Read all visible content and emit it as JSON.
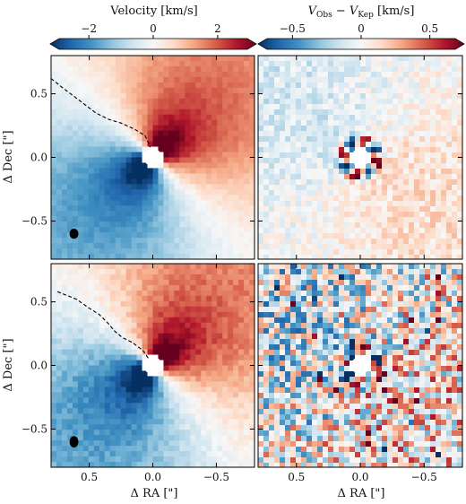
{
  "chart_data": [
    {
      "type": "heatmap",
      "panel": "top-left",
      "colorbar_label": "Velocity [km/s]",
      "colorbar_ticks": [
        -2,
        0,
        2
      ],
      "colorbar_range": [
        -3.2,
        3.2
      ],
      "colormap": "RdBu_r",
      "ylabel": "Δ Dec [\"]",
      "xlabel": "",
      "xlim": [
        0.8,
        -0.8
      ],
      "ylim": [
        -0.8,
        0.8
      ],
      "x_ticks": [
        0.5,
        0.0,
        -0.5
      ],
      "y_ticks": [
        0.5,
        0.0,
        -0.5
      ],
      "show_x_ticklabels": false,
      "show_y_ticklabels": true,
      "field": "velocity",
      "noise": 0.15,
      "zero_contour": [
        [
          0.8,
          0.62
        ],
        [
          0.7,
          0.54
        ],
        [
          0.58,
          0.45
        ],
        [
          0.45,
          0.35
        ],
        [
          0.35,
          0.3
        ],
        [
          0.25,
          0.27
        ],
        [
          0.14,
          0.22
        ],
        [
          0.06,
          0.17
        ],
        [
          0.02,
          0.08
        ]
      ],
      "beam": {
        "x": 0.62,
        "y": -0.6,
        "major": 0.04,
        "minor": 0.035
      },
      "masked_center_radius": 0.07
    },
    {
      "type": "heatmap",
      "panel": "top-right",
      "colorbar_label": "V_Obs − V_Kep [km/s]",
      "colorbar_ticks": [
        -0.5,
        0.0,
        0.5
      ],
      "colorbar_range": [
        -0.75,
        0.75
      ],
      "colormap": "RdBu_r",
      "xlabel": "",
      "ylabel": "",
      "xlim": [
        0.8,
        -0.8
      ],
      "ylim": [
        -0.8,
        0.8
      ],
      "x_ticks": [
        0.5,
        0.0,
        -0.5
      ],
      "y_ticks": [
        0.5,
        0.0,
        -0.5
      ],
      "show_x_ticklabels": false,
      "show_y_ticklabels": false,
      "field": "residual_smooth",
      "noise": 0.12,
      "masked_center_radius": 0.07
    },
    {
      "type": "heatmap",
      "panel": "bottom-left",
      "colorbar_range": [
        -3.2,
        3.2
      ],
      "colormap": "RdBu_r",
      "xlabel": "Δ RA [\"]",
      "ylabel": "Δ Dec [\"]",
      "xlim": [
        0.8,
        -0.8
      ],
      "ylim": [
        -0.8,
        0.8
      ],
      "x_ticks": [
        0.5,
        0.0,
        -0.5
      ],
      "y_ticks": [
        0.5,
        0.0,
        -0.5
      ],
      "show_x_ticklabels": true,
      "show_y_ticklabels": true,
      "field": "velocity",
      "noise": 0.25,
      "zero_contour": [
        [
          0.75,
          0.58
        ],
        [
          0.6,
          0.52
        ],
        [
          0.5,
          0.45
        ],
        [
          0.42,
          0.4
        ],
        [
          0.35,
          0.33
        ],
        [
          0.3,
          0.27
        ],
        [
          0.24,
          0.22
        ],
        [
          0.16,
          0.18
        ],
        [
          0.08,
          0.12
        ],
        [
          0.03,
          0.05
        ]
      ],
      "beam": {
        "x": 0.62,
        "y": -0.6,
        "major": 0.045,
        "minor": 0.035
      },
      "masked_center_radius": 0.07
    },
    {
      "type": "heatmap",
      "panel": "bottom-right",
      "colorbar_range": [
        -0.75,
        0.75
      ],
      "colormap": "RdBu_r",
      "xlabel": "Δ RA [\"]",
      "ylabel": "",
      "xlim": [
        0.8,
        -0.8
      ],
      "ylim": [
        -0.8,
        0.8
      ],
      "x_ticks": [
        0.5,
        0.0,
        -0.5
      ],
      "y_ticks": [
        0.5,
        0.0,
        -0.5
      ],
      "show_x_ticklabels": true,
      "show_y_ticklabels": false,
      "field": "residual_noisy",
      "noise": 0.45,
      "masked_center_radius": 0.07
    }
  ]
}
